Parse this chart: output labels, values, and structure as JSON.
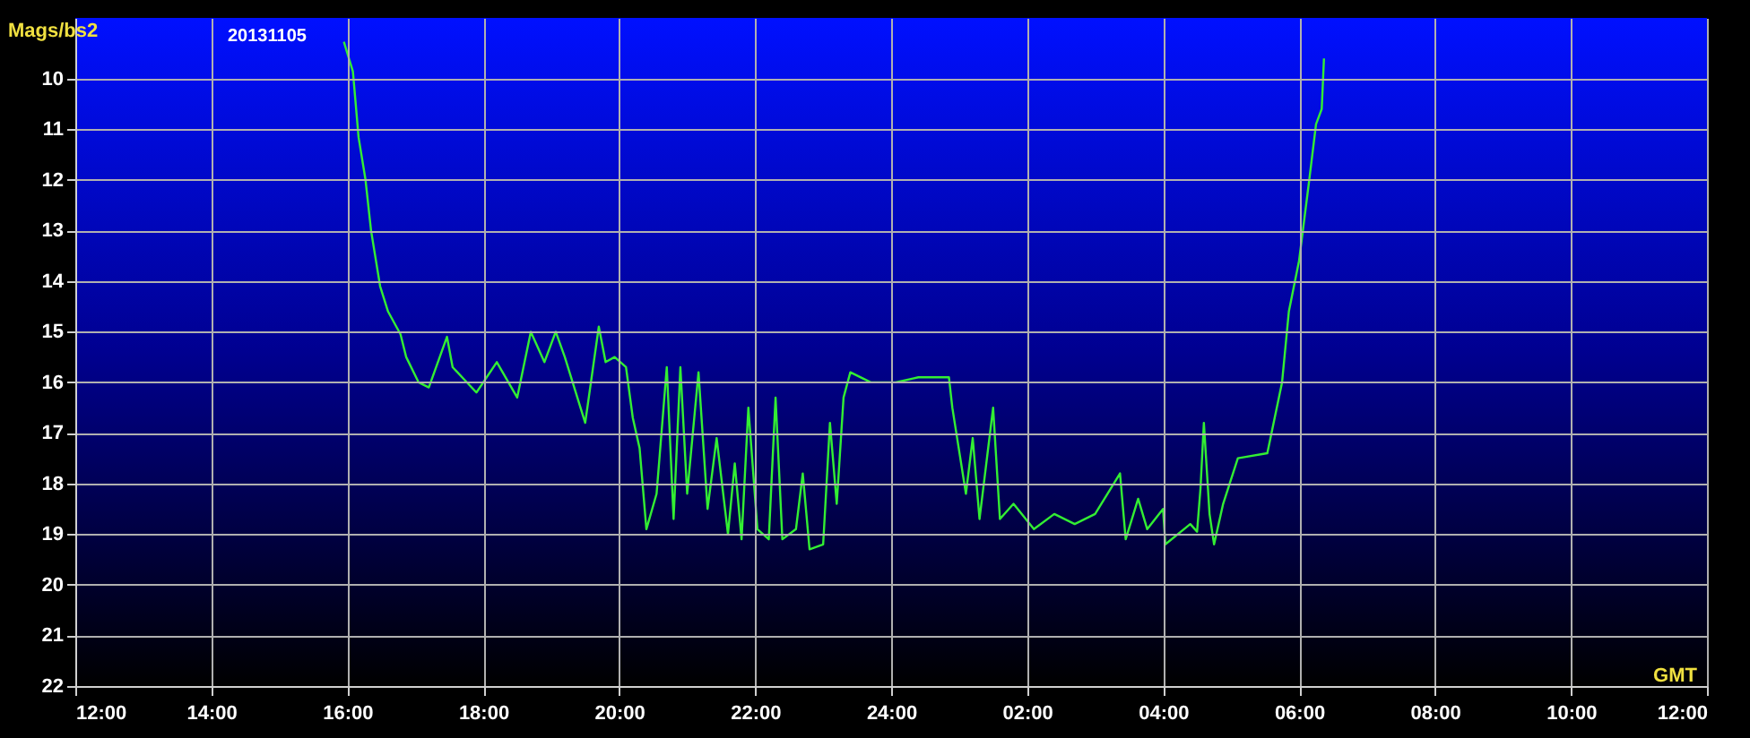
{
  "chart_data": {
    "type": "line",
    "ylabel": "Mags/bs2",
    "xlabel": "GMT",
    "annotations": [
      "20131105"
    ],
    "xlim": [
      "2013-11-05T12:00",
      "2013-11-06T12:00"
    ],
    "ylim": [
      22,
      8.8
    ],
    "xticks": [
      {
        "value": "2013-11-05T12:00",
        "label": "12:00"
      },
      {
        "value": "2013-11-05T14:00",
        "label": "14:00"
      },
      {
        "value": "2013-11-05T16:00",
        "label": "16:00"
      },
      {
        "value": "2013-11-05T18:00",
        "label": "18:00"
      },
      {
        "value": "2013-11-05T20:00",
        "label": "20:00"
      },
      {
        "value": "2013-11-05T22:00",
        "label": "22:00"
      },
      {
        "value": "2013-11-06T00:00",
        "label": "24:00"
      },
      {
        "value": "2013-11-06T02:00",
        "label": "02:00"
      },
      {
        "value": "2013-11-06T04:00",
        "label": "04:00"
      },
      {
        "value": "2013-11-06T06:00",
        "label": "06:00"
      },
      {
        "value": "2013-11-06T08:00",
        "label": "08:00"
      },
      {
        "value": "2013-11-06T10:00",
        "label": "10:00"
      },
      {
        "value": "2013-11-06T12:00",
        "label": "12:00"
      }
    ],
    "yticks": [
      10,
      11,
      12,
      13,
      14,
      15,
      16,
      17,
      18,
      19,
      20,
      21,
      22
    ],
    "grid": true,
    "legend": false,
    "marker": "none",
    "line_style": "solid",
    "series": [
      {
        "color": "#33ee33",
        "x": [
          "2013-11-05T15:57",
          "2013-11-05T16:05",
          "2013-11-05T16:10",
          "2013-11-05T16:16",
          "2013-11-05T16:21",
          "2013-11-05T16:29",
          "2013-11-05T16:36",
          "2013-11-05T16:47",
          "2013-11-05T16:52",
          "2013-11-05T17:03",
          "2013-11-05T17:12",
          "2013-11-05T17:28",
          "2013-11-05T17:33",
          "2013-11-05T17:54",
          "2013-11-05T18:12",
          "2013-11-05T18:30",
          "2013-11-05T18:42",
          "2013-11-05T18:54",
          "2013-11-05T19:04",
          "2013-11-05T19:12",
          "2013-11-05T19:30",
          "2013-11-05T19:42",
          "2013-11-05T19:48",
          "2013-11-05T19:56",
          "2013-11-05T20:06",
          "2013-11-05T20:12",
          "2013-11-05T20:18",
          "2013-11-05T20:24",
          "2013-11-05T20:33",
          "2013-11-05T20:42",
          "2013-11-05T20:48",
          "2013-11-05T20:54",
          "2013-11-05T21:00",
          "2013-11-05T21:10",
          "2013-11-05T21:18",
          "2013-11-05T21:26",
          "2013-11-05T21:36",
          "2013-11-05T21:42",
          "2013-11-05T21:48",
          "2013-11-05T21:54",
          "2013-11-05T22:02",
          "2013-11-05T22:12",
          "2013-11-05T22:18",
          "2013-11-05T22:24",
          "2013-11-05T22:36",
          "2013-11-05T22:42",
          "2013-11-05T22:48",
          "2013-11-05T23:00",
          "2013-11-05T23:06",
          "2013-11-05T23:12",
          "2013-11-05T23:18",
          "2013-11-05T23:24",
          "2013-11-05T23:42",
          "2013-11-06T00:04",
          "2013-11-06T00:24",
          "2013-11-06T00:51",
          "2013-11-06T00:54",
          "2013-11-06T01:06",
          "2013-11-06T01:12",
          "2013-11-06T01:18",
          "2013-11-06T01:30",
          "2013-11-06T01:36",
          "2013-11-06T01:48",
          "2013-11-06T02:06",
          "2013-11-06T02:24",
          "2013-11-06T02:42",
          "2013-11-06T03:00",
          "2013-11-06T03:22",
          "2013-11-06T03:27",
          "2013-11-06T03:38",
          "2013-11-06T03:46",
          "2013-11-06T04:00",
          "2013-11-06T04:02",
          "2013-11-06T04:24",
          "2013-11-06T04:30",
          "2013-11-06T04:33",
          "2013-11-06T04:36",
          "2013-11-06T04:41",
          "2013-11-06T04:45",
          "2013-11-06T04:53",
          "2013-11-06T05:06",
          "2013-11-06T05:32",
          "2013-11-06T05:45",
          "2013-11-06T05:51",
          "2013-11-06T06:00",
          "2013-11-06T06:09",
          "2013-11-06T06:15",
          "2013-11-06T06:20",
          "2013-11-06T06:22"
        ],
        "values": [
          9.27,
          9.86,
          11.16,
          11.98,
          13.0,
          14.1,
          14.6,
          15.05,
          15.5,
          16.0,
          16.1,
          15.1,
          15.7,
          16.2,
          15.6,
          16.3,
          15.0,
          15.6,
          15.0,
          15.5,
          16.8,
          14.9,
          15.6,
          15.5,
          15.7,
          16.7,
          17.3,
          18.9,
          18.2,
          15.7,
          18.7,
          15.7,
          18.2,
          15.8,
          18.5,
          17.1,
          19.0,
          17.6,
          19.1,
          16.5,
          18.9,
          19.1,
          16.3,
          19.1,
          18.9,
          17.8,
          19.3,
          19.2,
          16.8,
          18.4,
          16.3,
          15.8,
          16.0,
          16.0,
          15.9,
          15.9,
          16.5,
          18.2,
          17.1,
          18.7,
          16.5,
          18.7,
          18.4,
          18.9,
          18.6,
          18.8,
          18.6,
          17.8,
          19.1,
          18.3,
          18.9,
          18.5,
          19.2,
          18.8,
          18.95,
          18.1,
          16.8,
          18.6,
          19.2,
          18.4,
          17.5,
          17.4,
          16.0,
          14.6,
          13.6,
          12.0,
          10.9,
          10.6,
          9.6
        ]
      }
    ]
  }
}
